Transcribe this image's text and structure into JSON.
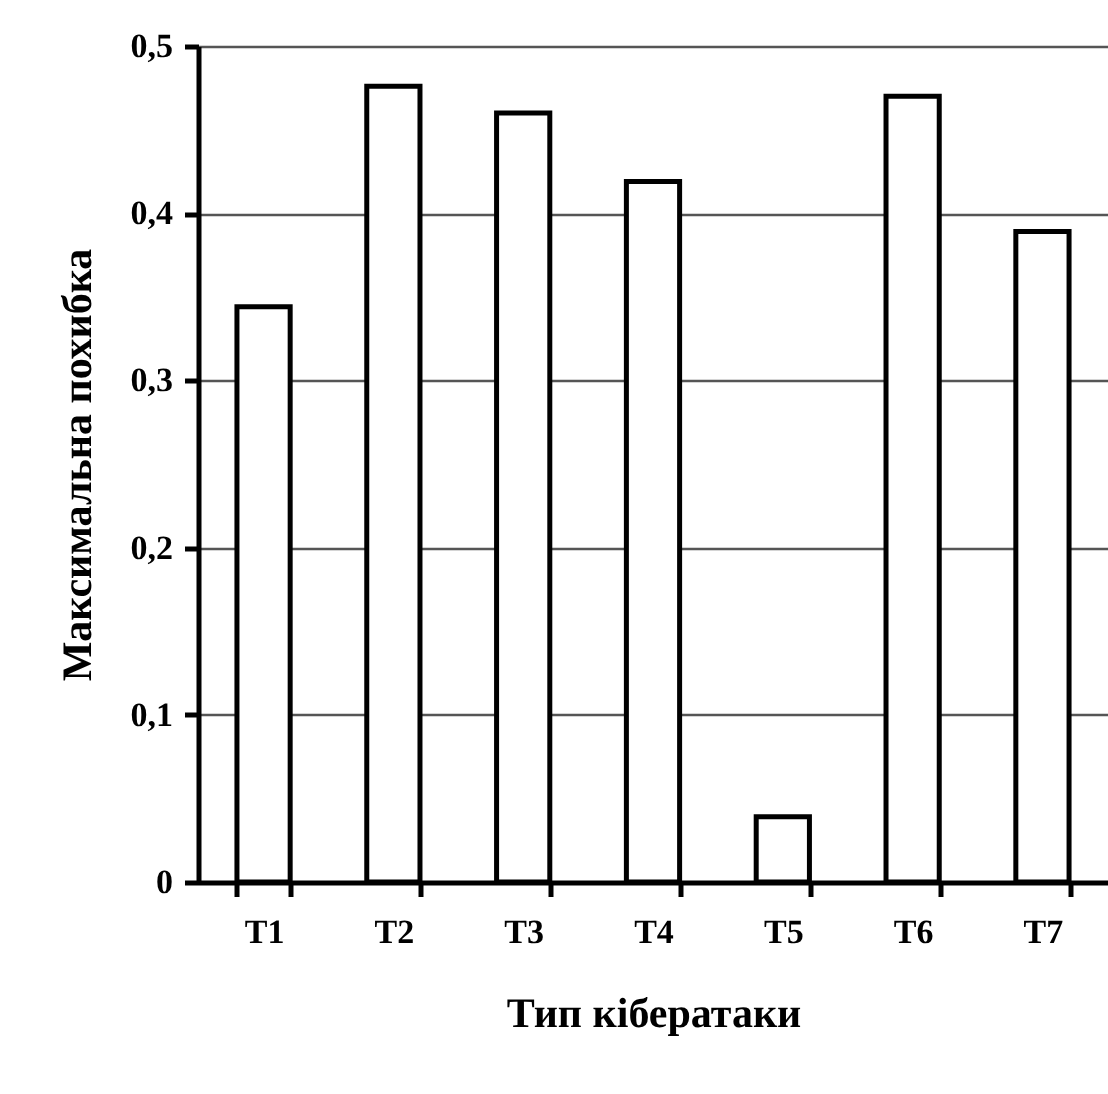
{
  "chart_data": {
    "type": "bar",
    "xlabel": "Тип кібератаки",
    "ylabel": "Максимальна похибка",
    "categories": [
      "T1",
      "T2",
      "T3",
      "T4",
      "T5",
      "T6",
      "T7"
    ],
    "values": [
      0.344,
      0.476,
      0.46,
      0.419,
      0.039,
      0.47,
      0.389
    ],
    "color": "#ffffff",
    "ylim": [
      0,
      0.5
    ],
    "yticks": [
      {
        "value": 0,
        "label": "0"
      },
      {
        "value": 0.1,
        "label": "0,1"
      },
      {
        "value": 0.2,
        "label": "0,2"
      },
      {
        "value": 0.3,
        "label": "0,3"
      },
      {
        "value": 0.4,
        "label": "0,4"
      },
      {
        "value": 0.5,
        "label": "0,5"
      }
    ],
    "grid": "y"
  }
}
